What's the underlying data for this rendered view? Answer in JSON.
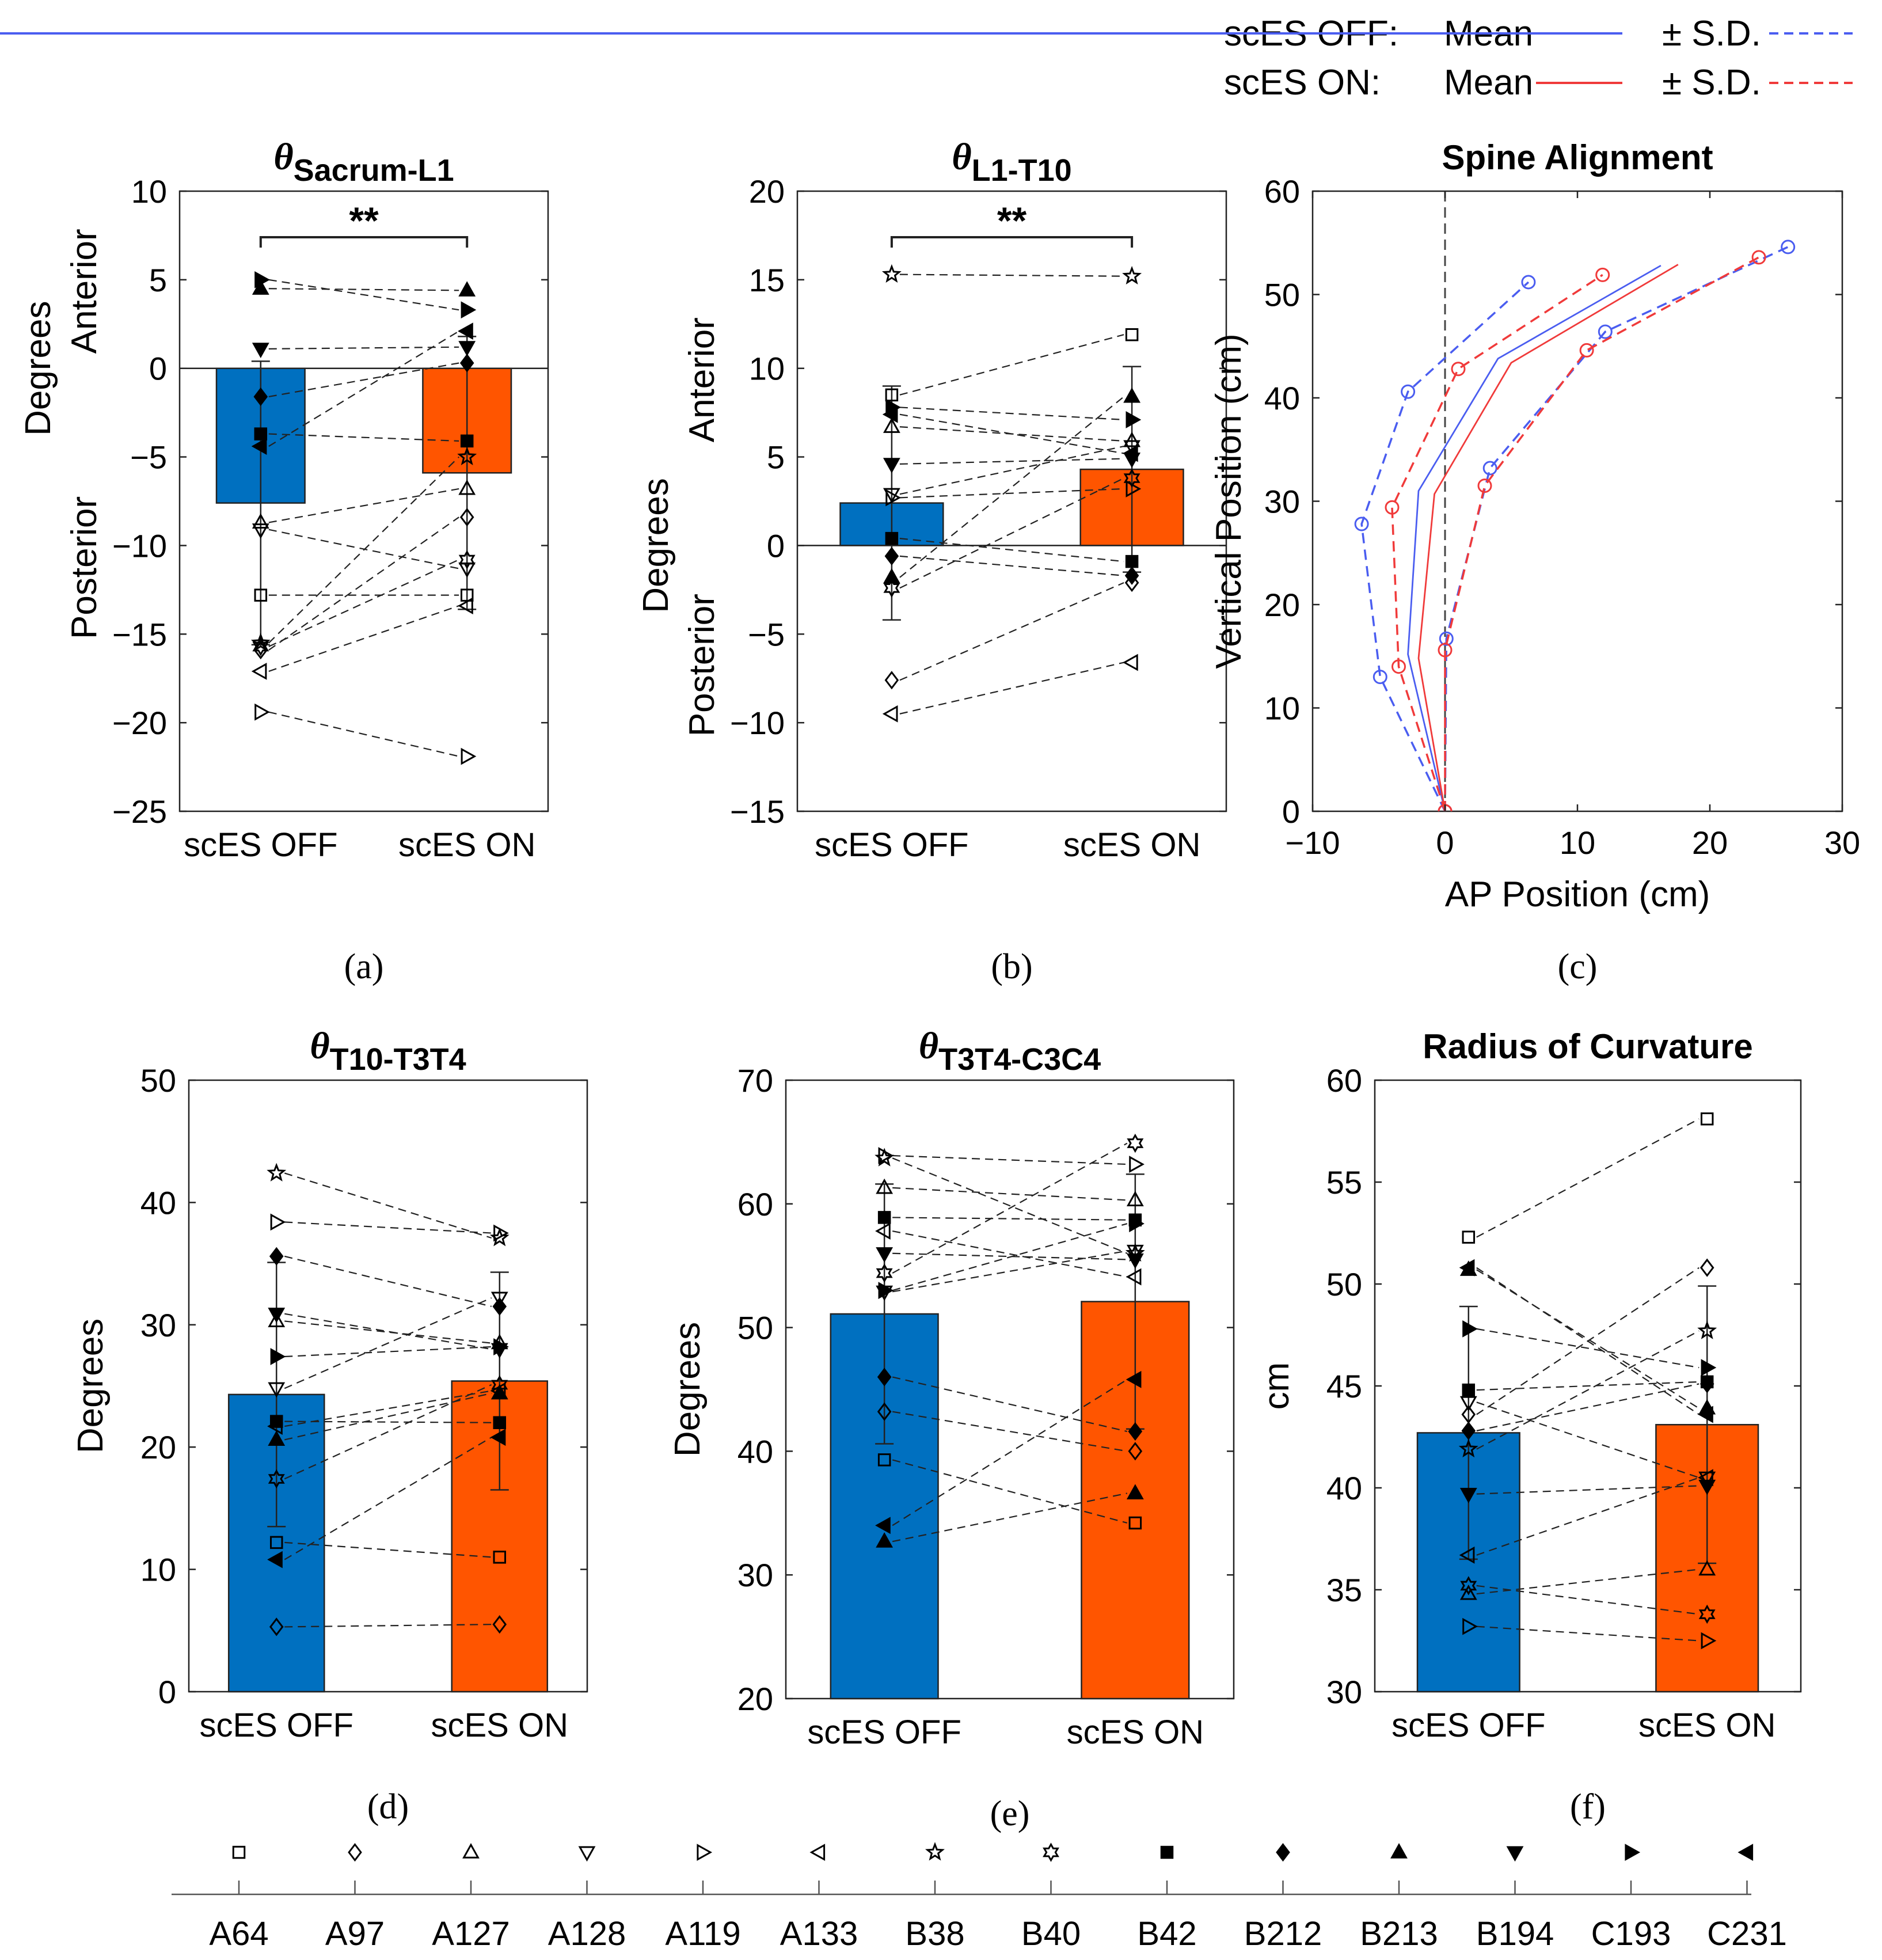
{
  "legend_top": {
    "off_label": "scES OFF:",
    "on_label": "scES ON:",
    "mean": "Mean",
    "sd": "± S.D.",
    "off_color": "#4a5df0",
    "on_color": "#f03a3a"
  },
  "colors": {
    "bar_off": "#0070C0",
    "bar_on": "#FF5500"
  },
  "subjects": [
    {
      "id": "A64",
      "marker": "square",
      "fill": "none"
    },
    {
      "id": "A97",
      "marker": "diamond",
      "fill": "none"
    },
    {
      "id": "A127",
      "marker": "triangle-up",
      "fill": "none"
    },
    {
      "id": "A128",
      "marker": "triangle-down",
      "fill": "none"
    },
    {
      "id": "A119",
      "marker": "triangle-right",
      "fill": "none"
    },
    {
      "id": "A133",
      "marker": "triangle-left",
      "fill": "none"
    },
    {
      "id": "B38",
      "marker": "star5",
      "fill": "none"
    },
    {
      "id": "B40",
      "marker": "star6",
      "fill": "none"
    },
    {
      "id": "B42",
      "marker": "square",
      "fill": "black"
    },
    {
      "id": "B212",
      "marker": "diamond",
      "fill": "black"
    },
    {
      "id": "B213",
      "marker": "triangle-up",
      "fill": "black"
    },
    {
      "id": "B194",
      "marker": "triangle-down",
      "fill": "black"
    },
    {
      "id": "C193",
      "marker": "triangle-right",
      "fill": "black"
    },
    {
      "id": "C231",
      "marker": "triangle-left",
      "fill": "black"
    }
  ],
  "chart_data": [
    {
      "id": "a",
      "type": "bar",
      "panel_label": "(a)",
      "title_symbol": "θ",
      "title_sub": "Sacrum-L1",
      "ylabel": "Degrees",
      "ylabel_upper": "Anterior",
      "ylabel_lower": "Posterior",
      "categories": [
        "scES OFF",
        "scES ON"
      ],
      "means": [
        -7.6,
        -5.9
      ],
      "sd": [
        8.0,
        7.7
      ],
      "ylim": [
        -25,
        10
      ],
      "yticks": [
        -25,
        -20,
        -15,
        -10,
        -5,
        0,
        5,
        10
      ],
      "zero_line": true,
      "significance": "**",
      "points_off": [
        -12.8,
        -15.9,
        -8.7,
        -9.1,
        -19.4,
        -17.1,
        -15.5,
        -15.7,
        -3.7,
        -1.6,
        4.5,
        1.1,
        5.0,
        -4.4
      ],
      "points_on": [
        -12.8,
        -8.4,
        -6.8,
        -11.3,
        -21.9,
        -13.4,
        -5.0,
        -10.8,
        -4.1,
        0.3,
        4.4,
        1.2,
        3.3,
        2.1
      ]
    },
    {
      "id": "b",
      "type": "bar",
      "panel_label": "(b)",
      "title_symbol": "θ",
      "title_sub": "L1-T10",
      "ylabel": "Degrees",
      "ylabel_upper": "Anterior",
      "ylabel_lower": "Posterior",
      "categories": [
        "scES OFF",
        "scES ON"
      ],
      "means": [
        2.4,
        4.3
      ],
      "sd": [
        6.6,
        5.8
      ],
      "ylim": [
        -15,
        20
      ],
      "yticks": [
        -15,
        -10,
        -5,
        0,
        5,
        10,
        15,
        20
      ],
      "zero_line": true,
      "significance": "**",
      "points_off": [
        8.5,
        -7.6,
        6.7,
        2.9,
        2.7,
        -9.5,
        15.3,
        -2.4,
        0.4,
        -0.6,
        -1.8,
        4.6,
        7.8,
        7.4
      ],
      "points_on": [
        11.9,
        -2.1,
        5.9,
        5.6,
        3.2,
        -6.6,
        15.2,
        3.8,
        -0.9,
        -1.7,
        8.4,
        4.9,
        7.1,
        5.2
      ]
    },
    {
      "id": "d",
      "type": "bar",
      "panel_label": "(d)",
      "title_symbol": "θ",
      "title_sub": "T10-T3T4",
      "ylabel": "Degrees",
      "categories": [
        "scES OFF",
        "scES ON"
      ],
      "means": [
        24.3,
        25.4
      ],
      "sd": [
        10.8,
        8.9
      ],
      "ylim": [
        0,
        50
      ],
      "yticks": [
        0,
        10,
        20,
        30,
        40,
        50
      ],
      "points_off": [
        12.2,
        5.3,
        30.3,
        24.8,
        38.4,
        21.7,
        42.4,
        17.4,
        22.1,
        35.6,
        20.6,
        30.9,
        27.4,
        10.8
      ],
      "points_on": [
        11.0,
        5.5,
        28.5,
        32.2,
        37.5,
        24.6,
        37.1,
        25.1,
        22.0,
        31.5,
        24.4,
        28.0,
        28.2,
        20.8
      ]
    },
    {
      "id": "e",
      "type": "bar",
      "panel_label": "(e)",
      "title_symbol": "θ",
      "title_sub": "T3T4-C3C4",
      "ylabel": "Degrees",
      "categories": [
        "scES OFF",
        "scES ON"
      ],
      "means": [
        51.1,
        52.1
      ],
      "sd": [
        10.5,
        10.3
      ],
      "ylim": [
        20,
        70
      ],
      "yticks": [
        20,
        30,
        40,
        50,
        60,
        70
      ],
      "points_off": [
        39.3,
        43.2,
        61.3,
        52.9,
        63.9,
        57.8,
        63.7,
        54.4,
        58.9,
        46.0,
        32.7,
        56.0,
        53.0,
        34.0
      ],
      "points_on": [
        34.2,
        40.0,
        60.3,
        56.2,
        63.2,
        54.1,
        56.0,
        64.9,
        58.7,
        41.6,
        36.6,
        55.5,
        58.4,
        45.8
      ]
    },
    {
      "id": "f",
      "type": "bar",
      "panel_label": "(f)",
      "title": "Radius of Curvature",
      "ylabel": "cm",
      "categories": [
        "scES OFF",
        "scES ON"
      ],
      "means": [
        42.7,
        43.1
      ],
      "sd": [
        6.2,
        6.8
      ],
      "ylim": [
        30,
        60
      ],
      "yticks": [
        30,
        35,
        40,
        45,
        50,
        55,
        60
      ],
      "points_off": [
        52.3,
        43.6,
        34.8,
        44.2,
        33.2,
        36.7,
        41.9,
        35.2,
        44.8,
        42.8,
        50.7,
        39.7,
        47.8,
        50.8
      ],
      "points_on": [
        58.1,
        50.8,
        36.0,
        40.5,
        32.5,
        40.5,
        47.7,
        33.8,
        45.2,
        45.1,
        43.9,
        40.1,
        45.9,
        43.6
      ]
    },
    {
      "id": "c",
      "type": "line",
      "panel_label": "(c)",
      "title": "Spine Alignment",
      "xlabel": "AP Position (cm)",
      "ylabel": "Vertical Position (cm)",
      "xlim": [
        -10,
        30
      ],
      "ylim": [
        0,
        60
      ],
      "xticks": [
        -10,
        0,
        10,
        20,
        30
      ],
      "yticks": [
        0,
        10,
        20,
        30,
        40,
        50,
        60
      ],
      "series": [
        {
          "name": "scES OFF Mean",
          "dash": false,
          "color": "off",
          "markers": false,
          "x": [
            0,
            -2.8,
            -2.0,
            4.0,
            16.3
          ],
          "y": [
            0,
            15.2,
            31.0,
            43.8,
            52.8
          ]
        },
        {
          "name": "scES OFF -S.D.",
          "dash": true,
          "color": "off",
          "markers": true,
          "x": [
            0,
            -4.9,
            -6.3,
            -2.8,
            6.3
          ],
          "y": [
            0,
            13.0,
            27.8,
            40.6,
            51.2
          ]
        },
        {
          "name": "scES OFF +S.D.",
          "dash": true,
          "color": "off",
          "markers": true,
          "x": [
            0,
            0.1,
            3.4,
            12.1,
            25.9
          ],
          "y": [
            0,
            16.7,
            33.2,
            46.4,
            54.6
          ]
        },
        {
          "name": "scES ON Mean",
          "dash": false,
          "color": "on",
          "markers": false,
          "x": [
            0,
            -2.0,
            -0.8,
            5.0,
            17.6
          ],
          "y": [
            0,
            14.8,
            30.7,
            43.4,
            52.9
          ]
        },
        {
          "name": "scES ON -S.D.",
          "dash": true,
          "color": "on",
          "markers": true,
          "x": [
            0,
            -3.5,
            -4.0,
            1.0,
            11.9
          ],
          "y": [
            0,
            14.0,
            29.4,
            42.8,
            51.9
          ]
        },
        {
          "name": "scES ON +S.D.",
          "dash": true,
          "color": "on",
          "markers": true,
          "x": [
            0,
            0.0,
            3.0,
            10.7,
            23.7
          ],
          "y": [
            0,
            15.6,
            31.5,
            44.6,
            53.6
          ]
        }
      ],
      "vline_x": 0
    }
  ]
}
